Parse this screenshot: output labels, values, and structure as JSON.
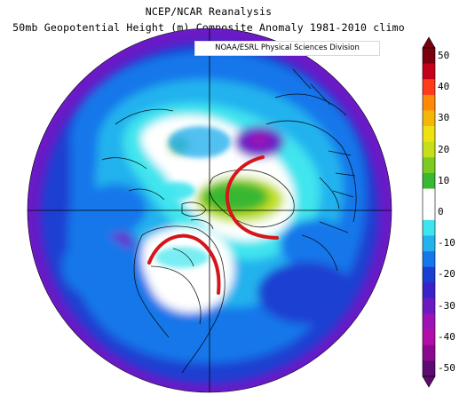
{
  "title": {
    "line1": "NCEP/NCAR Reanalysis",
    "line2": "50mb Geopotential Height (m) Composite Anomaly 1981-2010 climo"
  },
  "credit": "NOAA/ESRL Physical Sciences Division",
  "colorbar": {
    "labels": [
      "50",
      "40",
      "30",
      "20",
      "10",
      "0",
      "-10",
      "-20",
      "-30",
      "-40",
      "-50"
    ],
    "colors": [
      "#7a0010",
      "#c4001d",
      "#ff3b1c",
      "#ff8a0a",
      "#f5b60a",
      "#efe010",
      "#c5e01a",
      "#7acc22",
      "#39b832",
      "#ffffff",
      "#ffffff",
      "#3fe5ee",
      "#24b2ee",
      "#1677ea",
      "#1b3fd2",
      "#3a22c8",
      "#6b1ac2",
      "#9c12b6",
      "#b10da8",
      "#8a0a8e",
      "#5e0a70"
    ]
  },
  "map": {
    "projection": "north-polar-stereographic",
    "field": "50mb geopotential height anomaly (m)",
    "features": [
      "strong negative anomaly (-30 to -40 m) over Siberia / North Pacific / western periphery",
      "near-zero to weakly positive anomaly over Greenland and the Canadian Arctic archipelago",
      "positive anomaly (+10 to +15 m) centred near Greenland / Baffin Bay",
      "small positive anomaly (+10 m) over the Arctic Ocean near the Laptev Sea",
      "near-zero anomaly over eastern North America",
      "red arcs drawn over Greenland and North America"
    ]
  }
}
